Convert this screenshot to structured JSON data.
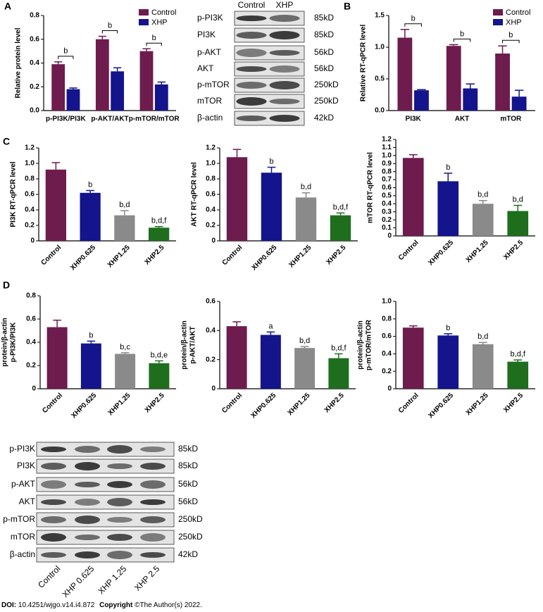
{
  "panels": [
    "A",
    "B",
    "C",
    "D"
  ],
  "chart_data": [
    {
      "type": "bar",
      "ylabel": "Relative protein level",
      "categories": [
        "p-PI3K/PI3K",
        "p-AKT/AKT",
        "p-mTOR/mTOR"
      ],
      "series": [
        {
          "name": "Control",
          "color": "#6e1b4e",
          "values": [
            0.39,
            0.6,
            0.5
          ],
          "errors": [
            0.02,
            0.025,
            0.02
          ]
        },
        {
          "name": "XHP",
          "color": "#14148c",
          "values": [
            0.18,
            0.33,
            0.22
          ],
          "errors": [
            0.01,
            0.03,
            0.02
          ]
        }
      ],
      "annotations": [
        "b",
        "b",
        "b"
      ],
      "ylim": [
        0,
        0.8
      ],
      "yticks": [
        {
          "value": 0,
          "label": "0.0"
        },
        0.2,
        0.4,
        0.6,
        0.8
      ]
    },
    {
      "type": "bar",
      "ylabel": "Relative RT-qPCR level",
      "categories": [
        "PI3K",
        "AKT",
        "mTOR"
      ],
      "series": [
        {
          "name": "Control",
          "color": "#6e1b4e",
          "values": [
            1.15,
            1.02,
            0.9
          ],
          "errors": [
            0.13,
            0.02,
            0.12
          ]
        },
        {
          "name": "XHP",
          "color": "#14148c",
          "values": [
            0.32,
            0.35,
            0.22
          ],
          "errors": [
            0.01,
            0.07,
            0.1
          ]
        }
      ],
      "annotations": [
        "b",
        "b",
        "b"
      ],
      "ylim": [
        0,
        1.5
      ],
      "yticks": [
        {
          "value": 0,
          "label": "0.0"
        },
        0.5,
        {
          "value": 1,
          "label": "1.0"
        },
        1.5
      ]
    },
    {
      "type": "bar",
      "ylabel": "PI3K RT-qPCR level",
      "categories": [
        "Control",
        "XHP0.625",
        "XHP1.25",
        "XHP2.5"
      ],
      "colors": [
        "#6e1b4e",
        "#14148c",
        "#8a8a8a",
        "#1e6e1e"
      ],
      "values": [
        0.92,
        0.62,
        0.33,
        0.17
      ],
      "errors": [
        0.09,
        0.03,
        0.06,
        0.015
      ],
      "annotations": [
        null,
        "b",
        "b,d",
        "b,d,f"
      ],
      "ylim": [
        0,
        1.2
      ],
      "yticks": [
        0,
        0.2,
        0.4,
        0.6,
        0.8,
        {
          "value": 1,
          "label": "1.0"
        },
        1.2
      ]
    },
    {
      "type": "bar",
      "ylabel": "AKT RT-qPCR level",
      "categories": [
        "Control",
        "XHP0.625",
        "XHP1.25",
        "XHP2.5"
      ],
      "colors": [
        "#6e1b4e",
        "#14148c",
        "#8a8a8a",
        "#1e6e1e"
      ],
      "values": [
        1.08,
        0.88,
        0.56,
        0.33
      ],
      "errors": [
        0.1,
        0.07,
        0.06,
        0.03
      ],
      "annotations": [
        null,
        "b",
        "b,d",
        "b,d,f"
      ],
      "ylim": [
        0,
        1.2
      ],
      "yticks": [
        0,
        0.2,
        0.4,
        0.6,
        0.8,
        {
          "value": 1,
          "label": "1.0"
        },
        1.2
      ]
    },
    {
      "type": "bar",
      "ylabel": "mTOR RT-qPCR level",
      "categories": [
        "Control",
        "XHP0.625",
        "XHP1.25",
        "XHP2.5"
      ],
      "colors": [
        "#6e1b4e",
        "#14148c",
        "#8a8a8a",
        "#1e6e1e"
      ],
      "values": [
        0.97,
        0.68,
        0.4,
        0.31
      ],
      "errors": [
        0.04,
        0.1,
        0.04,
        0.07
      ],
      "annotations": [
        null,
        "b",
        "b,d",
        "b,d"
      ],
      "ylim": [
        0,
        1.2
      ],
      "yticks": [
        0,
        0.1,
        0.2,
        0.3,
        0.4,
        0.5,
        0.6,
        0.7,
        0.8,
        0.9,
        {
          "value": 1,
          "label": "1.0"
        },
        1.1,
        1.2
      ]
    },
    {
      "type": "bar",
      "ylabel": [
        "protein/β-actin",
        "p-PI3K/PI3K"
      ],
      "categories": [
        "Control",
        "XHP0.625",
        "XHP1.25",
        "XHP2.5"
      ],
      "colors": [
        "#6e1b4e",
        "#14148c",
        "#8a8a8a",
        "#1e6e1e"
      ],
      "values": [
        0.53,
        0.39,
        0.3,
        0.22
      ],
      "errors": [
        0.06,
        0.02,
        0.01,
        0.02
      ],
      "annotations": [
        null,
        "b",
        "b,c",
        "b,d,e"
      ],
      "ylim": [
        0,
        0.8
      ],
      "yticks": [
        0,
        0.2,
        0.4,
        0.6,
        0.8
      ]
    },
    {
      "type": "bar",
      "ylabel": [
        "protein/β-actin",
        "p-AKT/AKT"
      ],
      "categories": [
        "Control",
        "XHP0.625",
        "XHP1.25",
        "XHP2.5"
      ],
      "colors": [
        "#6e1b4e",
        "#14148c",
        "#8a8a8a",
        "#1e6e1e"
      ],
      "values": [
        0.43,
        0.37,
        0.28,
        0.21
      ],
      "errors": [
        0.03,
        0.02,
        0.01,
        0.03
      ],
      "annotations": [
        null,
        "a",
        "b,d",
        "b,d,f"
      ],
      "ylim": [
        0,
        0.6
      ],
      "yticks": [
        0,
        0.2,
        0.4,
        0.6
      ]
    },
    {
      "type": "bar",
      "ylabel": [
        "protein/β-actin",
        "p-mTOR/mTOR"
      ],
      "categories": [
        "Control",
        "XHP0.625",
        "XHP1.25",
        "XHP2.5"
      ],
      "colors": [
        "#6e1b4e",
        "#14148c",
        "#8a8a8a",
        "#1e6e1e"
      ],
      "values": [
        0.7,
        0.61,
        0.51,
        0.31
      ],
      "errors": [
        0.02,
        0.02,
        0.02,
        0.02
      ],
      "annotations": [
        null,
        "b",
        "b,d",
        "b,d,f"
      ],
      "ylim": [
        0,
        1.0
      ],
      "yticks": [
        0,
        0.2,
        0.4,
        0.6,
        0.8,
        {
          "value": 1,
          "label": "1.0"
        }
      ]
    }
  ],
  "blot_top": {
    "header": [
      "Control",
      "XHP"
    ],
    "rows": [
      {
        "label": "p-PI3K",
        "size": "85kD"
      },
      {
        "label": "PI3K",
        "size": "85kD"
      },
      {
        "label": "p-AKT",
        "size": "56kD"
      },
      {
        "label": "AKT",
        "size": "56kD"
      },
      {
        "label": "p-mTOR",
        "size": "250kD"
      },
      {
        "label": "mTOR",
        "size": "250kD"
      },
      {
        "label": "β-actin",
        "size": "42kD"
      }
    ]
  },
  "blot_bottom": {
    "lanes": [
      "Control",
      "XHP 0.625",
      "XHP 1.25",
      "XHP 2.5"
    ],
    "rows": [
      {
        "label": "p-PI3K",
        "size": "85kD"
      },
      {
        "label": "PI3K",
        "size": "85kD"
      },
      {
        "label": "p-AKT",
        "size": "56kD"
      },
      {
        "label": "AKT",
        "size": "56kD"
      },
      {
        "label": "p-mTOR",
        "size": "250kD"
      },
      {
        "label": "mTOR",
        "size": "250kD"
      },
      {
        "label": "β-actin",
        "size": "42kD"
      }
    ]
  },
  "footer": {
    "doi_label": "DOI:",
    "doi": "10.4251/wjgo.v14.i4.872",
    "copyright_label": "Copyright",
    "copyright": "©The Author(s) 2022."
  }
}
